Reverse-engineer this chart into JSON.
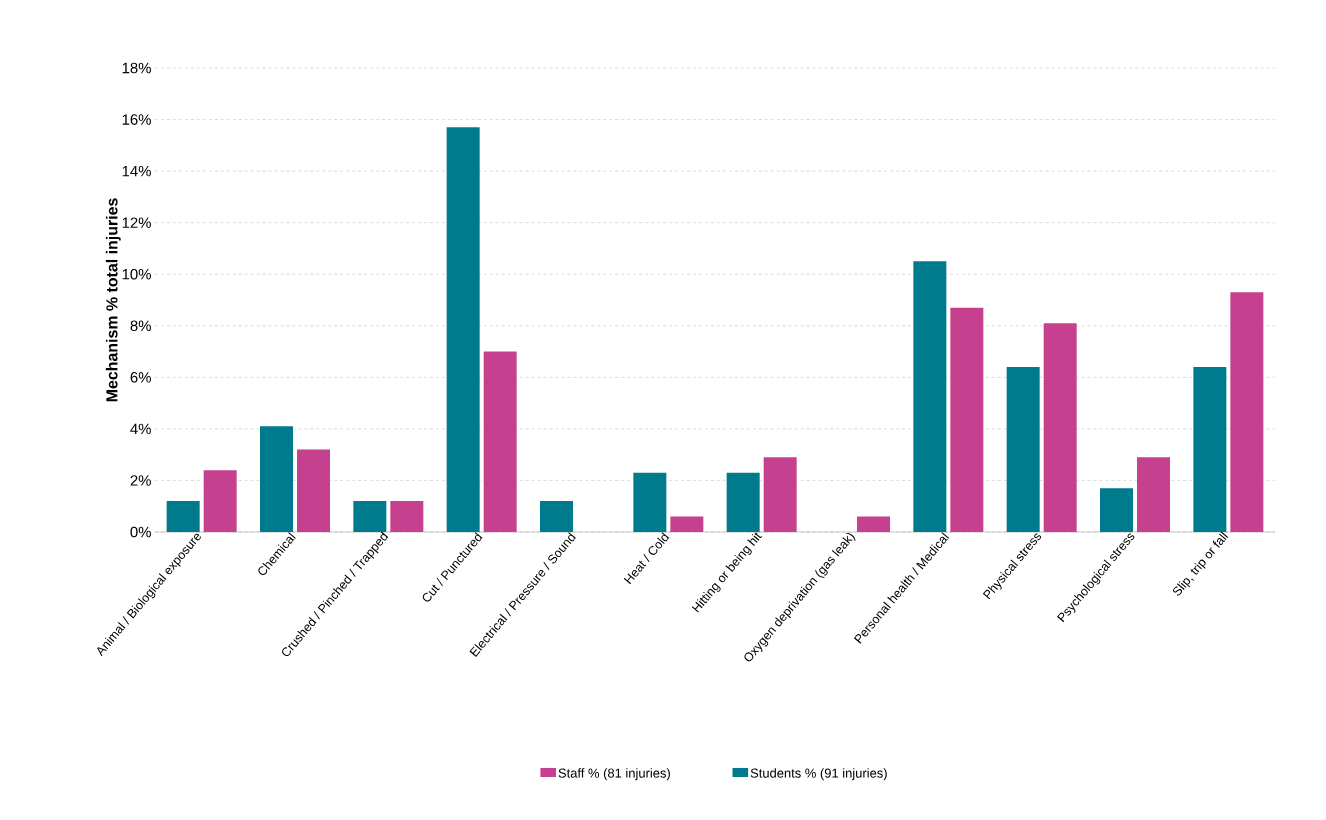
{
  "chart_data": {
    "type": "bar",
    "ylabel": "Mechanism % total injuries",
    "categories": [
      "Animal / Biological exposure",
      "Chemical",
      "Crushed / Pinched / Trapped",
      "Cut / Punctured",
      "Electrical / Pressure / Sound",
      "Heat / Cold",
      "Hitting or being hit",
      "Oxygen deprivation (gas leak)",
      "Personal health / Medical",
      "Physical stress",
      "Psychological stress",
      "Slip, trip or fall"
    ],
    "series": [
      {
        "name": "Students % (91 injuries)",
        "color": "#007b8e",
        "values": [
          1.2,
          4.1,
          1.2,
          15.7,
          1.2,
          2.3,
          2.3,
          0,
          10.5,
          6.4,
          1.7,
          6.4
        ]
      },
      {
        "name": "Staff % (81 injuries)",
        "color": "#c5418f",
        "values": [
          2.4,
          3.2,
          1.2,
          7.0,
          0,
          0.6,
          2.9,
          0.6,
          8.7,
          8.1,
          2.9,
          9.3
        ]
      }
    ],
    "ylim": [
      0,
      18
    ],
    "yticks": [
      {
        "value": 0,
        "label": "0%"
      },
      {
        "value": 2,
        "label": "2%"
      },
      {
        "value": 4,
        "label": "4%"
      },
      {
        "value": 6,
        "label": "6%"
      },
      {
        "value": 8,
        "label": "8%"
      },
      {
        "value": 10,
        "label": "10%"
      },
      {
        "value": 12,
        "label": "12%"
      },
      {
        "value": 14,
        "label": "14%"
      },
      {
        "value": 16,
        "label": "16%"
      },
      {
        "value": 18,
        "label": "18%"
      }
    ],
    "grid": "y",
    "legend": "bottom"
  }
}
